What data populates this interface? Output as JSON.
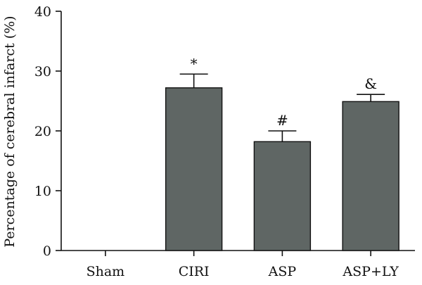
{
  "chart_data": {
    "type": "bar",
    "categories": [
      "Sham",
      "CIRI",
      "ASP",
      "ASP+LY"
    ],
    "values": [
      0,
      27.2,
      18.2,
      24.9
    ],
    "errors": [
      0,
      2.3,
      1.8,
      1.2
    ],
    "annotations": [
      "",
      "*",
      "#",
      "&"
    ],
    "title": "",
    "xlabel": "",
    "ylabel": "Percentage of cerebral infarct (%)",
    "ylim": [
      0,
      40
    ],
    "yticks": [
      0,
      10,
      20,
      30,
      40
    ],
    "grid": false,
    "bar_color": "#5f6664"
  }
}
